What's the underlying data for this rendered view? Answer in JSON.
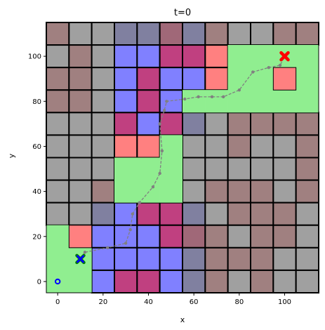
{
  "chart_data": {
    "type": "grid-map",
    "title": "t=0",
    "xlabel": "x",
    "ylabel": "y",
    "xlim": [
      -5,
      115
    ],
    "ylim": [
      -5,
      115
    ],
    "xticks": [
      0,
      20,
      40,
      60,
      80,
      100
    ],
    "yticks": [
      0,
      20,
      40,
      60,
      80,
      100
    ],
    "grid": false,
    "cell_size": 10,
    "cell_origin": [
      -5,
      -5
    ],
    "colors": {
      "G": "#a0a0a0",
      "R": "#a08080",
      "B": "#8080ff",
      "M": "#c04080",
      "S": "#8080a0",
      "P": "#a06878",
      "K": "#ff8080",
      "L": "#90ee90"
    },
    "cell_rows_top_to_bottom": [
      "RGGSSPSRGGRR",
      "GRGBBMMKLLLL",
      "RRGBMBBKLLKL",
      "RRGBMBLLLLLL",
      "GGGMBMSGRRRR",
      "GGGKKLGGRGGR",
      "GGGLLLGGGGGR",
      "GGRLLLGRRRGR",
      "GGSBMMSGRRRG",
      "LKBBBMPRGRRG",
      "LLBBBBSRRRGG",
      "LLBMMBSRGRGG"
    ],
    "green_regions": [
      {
        "x": [
          -5,
          15
        ],
        "y": [
          -5,
          25
        ]
      },
      {
        "x": [
          25,
          45
        ],
        "y": [
          35,
          55
        ]
      },
      {
        "x": [
          45,
          55
        ],
        "y": [
          35,
          65
        ]
      },
      {
        "x": [
          55,
          65
        ],
        "y": [
          75,
          85
        ]
      },
      {
        "x": [
          75,
          115
        ],
        "y": [
          75,
          105
        ]
      },
      {
        "x": [
          65,
          75
        ],
        "y": [
          75,
          85
        ]
      }
    ],
    "path": {
      "x": [
        10,
        12,
        22,
        30,
        32,
        33,
        36,
        42,
        45,
        46,
        45,
        47,
        48,
        56,
        62,
        68,
        73,
        80,
        86,
        93,
        98,
        100
      ],
      "y": [
        10,
        13,
        15,
        17,
        23,
        30,
        35,
        42,
        48,
        58,
        70,
        76,
        80,
        81,
        82,
        82,
        82,
        85,
        93,
        95,
        96,
        100
      ],
      "color": "#808080"
    },
    "start": {
      "x": 10,
      "y": 10,
      "color": "#0000ff"
    },
    "start_outer": {
      "x": 10,
      "y": 10,
      "color": "#008000"
    },
    "goal": {
      "x": 100,
      "y": 100,
      "color": "#ff0000"
    },
    "robot": {
      "x": 0,
      "y": 0,
      "color": "#0000ff"
    }
  }
}
